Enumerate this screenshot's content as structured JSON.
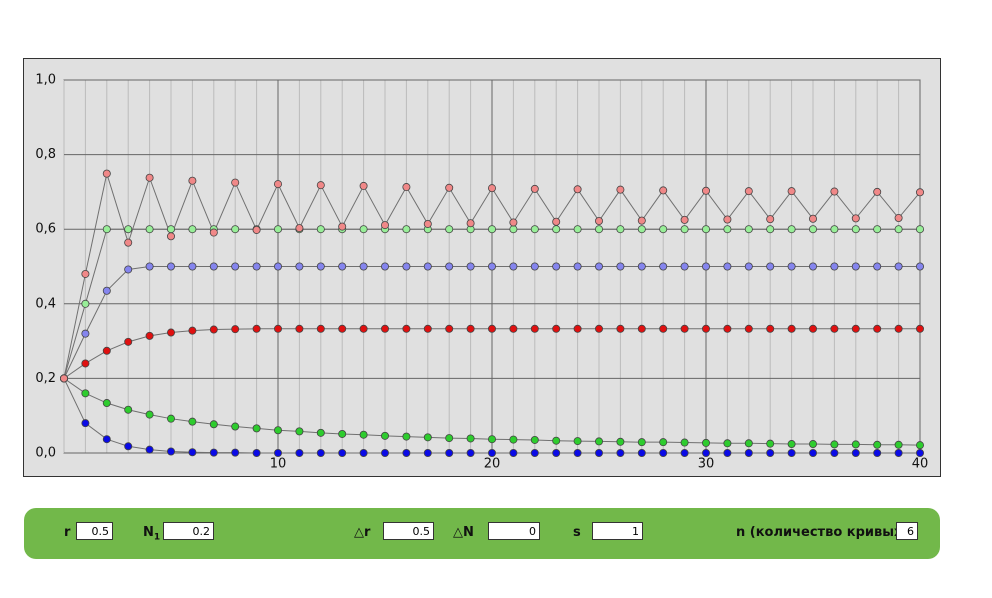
{
  "chart_data": {
    "type": "line",
    "x": [
      0,
      1,
      2,
      3,
      4,
      5,
      6,
      7,
      8,
      9,
      10,
      11,
      12,
      13,
      14,
      15,
      16,
      17,
      18,
      19,
      20,
      21,
      22,
      23,
      24,
      25,
      26,
      27,
      28,
      29,
      30,
      31,
      32,
      33,
      34,
      35,
      36,
      37,
      38,
      39,
      40
    ],
    "xlim": [
      0,
      40
    ],
    "xticks": [
      10,
      20,
      30,
      40
    ],
    "ylim": [
      0,
      1
    ],
    "yticks": [
      {
        "value": 0,
        "label": "0,0"
      },
      {
        "value": 0.2,
        "label": "0,2"
      },
      {
        "value": 0.4,
        "label": "0,4"
      },
      {
        "value": 0.6,
        "label": "0,6"
      },
      {
        "value": 0.8,
        "label": "0,8"
      },
      {
        "value": 1,
        "label": "1,0"
      }
    ],
    "grid": true,
    "line_color": "#707070",
    "series": [
      {
        "color": "#0a0ae6",
        "values": [
          0.2,
          0.08,
          0.037,
          0.018,
          0.009,
          0.004,
          0.002,
          0.001,
          0.001,
          0,
          0,
          0,
          0,
          0,
          0,
          0,
          0,
          0,
          0,
          0,
          0,
          0,
          0,
          0,
          0,
          0,
          0,
          0,
          0,
          0,
          0,
          0,
          0,
          0,
          0,
          0,
          0,
          0,
          0,
          0,
          0
        ]
      },
      {
        "color": "#2ecc2e",
        "values": [
          0.2,
          0.16,
          0.134,
          0.116,
          0.103,
          0.092,
          0.084,
          0.077,
          0.071,
          0.066,
          0.061,
          0.058,
          0.054,
          0.051,
          0.049,
          0.046,
          0.044,
          0.042,
          0.04,
          0.039,
          0.037,
          0.036,
          0.035,
          0.033,
          0.032,
          0.031,
          0.03,
          0.029,
          0.029,
          0.028,
          0.027,
          0.026,
          0.026,
          0.025,
          0.024,
          0.024,
          0.023,
          0.023,
          0.022,
          0.022,
          0.021
        ]
      },
      {
        "color": "#e01010",
        "values": [
          0.2,
          0.24,
          0.274,
          0.298,
          0.314,
          0.323,
          0.328,
          0.331,
          0.332,
          0.333,
          0.333,
          0.333,
          0.333,
          0.333,
          0.333,
          0.333,
          0.333,
          0.333,
          0.333,
          0.333,
          0.333,
          0.333,
          0.333,
          0.333,
          0.333,
          0.333,
          0.333,
          0.333,
          0.333,
          0.333,
          0.333,
          0.333,
          0.333,
          0.333,
          0.333,
          0.333,
          0.333,
          0.333,
          0.333,
          0.333,
          0.333
        ]
      },
      {
        "color": "#8585ee",
        "values": [
          0.2,
          0.32,
          0.435,
          0.492,
          0.5,
          0.5,
          0.5,
          0.5,
          0.5,
          0.5,
          0.5,
          0.5,
          0.5,
          0.5,
          0.5,
          0.5,
          0.5,
          0.5,
          0.5,
          0.5,
          0.5,
          0.5,
          0.5,
          0.5,
          0.5,
          0.5,
          0.5,
          0.5,
          0.5,
          0.5,
          0.5,
          0.5,
          0.5,
          0.5,
          0.5,
          0.5,
          0.5,
          0.5,
          0.5,
          0.5,
          0.5
        ]
      },
      {
        "color": "#98ee98",
        "values": [
          0.2,
          0.4,
          0.6,
          0.6,
          0.6,
          0.6,
          0.6,
          0.6,
          0.6,
          0.6,
          0.6,
          0.6,
          0.6,
          0.6,
          0.6,
          0.6,
          0.6,
          0.6,
          0.6,
          0.6,
          0.6,
          0.6,
          0.6,
          0.6,
          0.6,
          0.6,
          0.6,
          0.6,
          0.6,
          0.6,
          0.6,
          0.6,
          0.6,
          0.6,
          0.6,
          0.6,
          0.6,
          0.6,
          0.6,
          0.6,
          0.6
        ]
      },
      {
        "color": "#f08888",
        "values": [
          0.2,
          0.48,
          0.749,
          0.564,
          0.738,
          0.581,
          0.73,
          0.591,
          0.725,
          0.598,
          0.721,
          0.603,
          0.718,
          0.607,
          0.716,
          0.611,
          0.713,
          0.614,
          0.711,
          0.616,
          0.71,
          0.618,
          0.708,
          0.62,
          0.707,
          0.622,
          0.706,
          0.623,
          0.704,
          0.625,
          0.703,
          0.626,
          0.702,
          0.627,
          0.702,
          0.628,
          0.701,
          0.629,
          0.7,
          0.63,
          0.699
        ]
      }
    ]
  },
  "controls": [
    {
      "label": "r",
      "value": 0.5
    },
    {
      "label": "N",
      "sub": "1",
      "value": 0.2
    },
    {
      "label": "△r",
      "value": 0.5
    },
    {
      "label": "△N",
      "value": 0
    },
    {
      "label": "s",
      "value": 1
    },
    {
      "label": "n (количество кривых):",
      "value": 6
    }
  ]
}
